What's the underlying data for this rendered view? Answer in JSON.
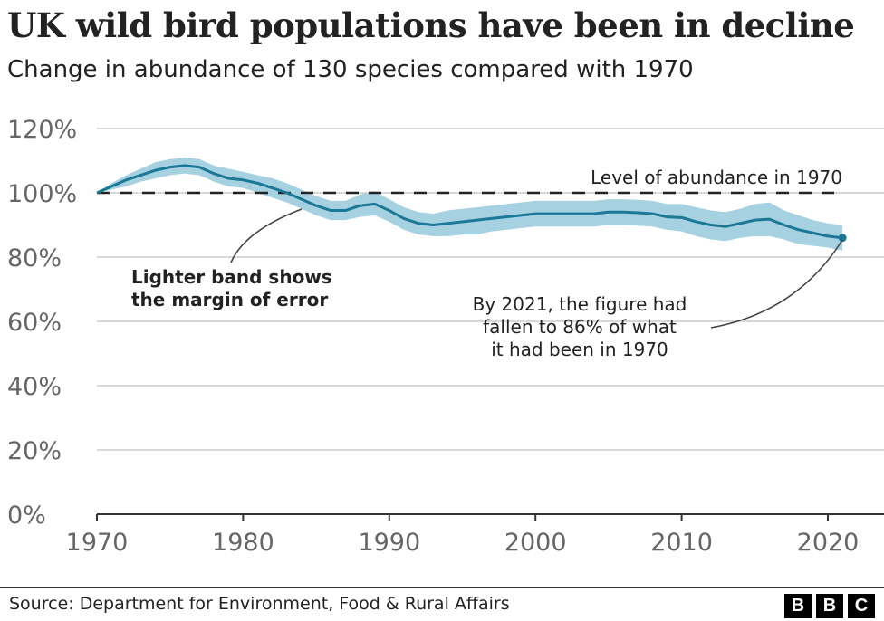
{
  "chart_data": {
    "type": "line",
    "title": "UK wild bird populations have been in decline",
    "subtitle": "Change in abundance of 130 species compared with 1970",
    "x": [
      1970,
      1971,
      1972,
      1973,
      1974,
      1975,
      1976,
      1977,
      1978,
      1979,
      1980,
      1981,
      1982,
      1983,
      1984,
      1985,
      1986,
      1987,
      1988,
      1989,
      1990,
      1991,
      1992,
      1993,
      1994,
      1995,
      1996,
      1997,
      1998,
      1999,
      2000,
      2001,
      2002,
      2003,
      2004,
      2005,
      2006,
      2007,
      2008,
      2009,
      2010,
      2011,
      2012,
      2013,
      2014,
      2015,
      2016,
      2017,
      2018,
      2019,
      2020,
      2021
    ],
    "values": [
      100,
      102,
      104,
      105.5,
      107,
      108,
      108.5,
      108,
      106,
      104.5,
      104,
      103,
      101.5,
      100,
      98,
      96,
      94.5,
      94.5,
      96,
      96.5,
      94.5,
      92,
      90.5,
      90,
      90.5,
      91,
      91.5,
      92,
      92.5,
      93,
      93.5,
      93.5,
      93.5,
      93.5,
      93.5,
      94,
      94,
      93.8,
      93.5,
      92.5,
      92.3,
      91,
      90,
      89.5,
      90.5,
      91.5,
      91.8,
      90,
      88.5,
      87.5,
      86.5,
      86
    ],
    "lower": [
      100,
      101,
      102,
      103.5,
      104.5,
      105.5,
      106,
      105.5,
      103.5,
      102,
      101.5,
      100,
      98.5,
      97,
      95,
      93,
      91.5,
      91.5,
      92.5,
      93,
      91,
      88.5,
      87,
      86.5,
      86.5,
      87,
      87,
      88,
      88.5,
      89,
      89.5,
      89.5,
      89.5,
      89.5,
      89.5,
      90,
      90,
      89.8,
      89.5,
      88.5,
      88,
      86.5,
      85.5,
      85,
      86,
      86.5,
      86.5,
      85.5,
      84,
      83.5,
      83,
      82
    ],
    "upper": [
      100,
      103,
      105.5,
      107.5,
      109.5,
      110.5,
      111,
      110.5,
      108.5,
      107.5,
      106.5,
      105.5,
      104.5,
      103,
      101,
      99,
      97.5,
      97.5,
      99.5,
      100.5,
      98,
      95.5,
      94,
      93.5,
      94.5,
      95,
      95.5,
      96,
      96.5,
      97,
      97.5,
      97.5,
      97.5,
      97.5,
      97.5,
      98,
      98,
      97.8,
      97.5,
      96.5,
      96.5,
      95.5,
      94.5,
      94,
      95,
      96.5,
      97,
      94.5,
      93,
      91.5,
      90.5,
      90
    ],
    "reference_line": {
      "value": 100,
      "label": "Level of abundance in 1970"
    },
    "xlim": [
      1970,
      2022
    ],
    "ylim": [
      0,
      120
    ],
    "yticks": [
      0,
      20,
      40,
      60,
      80,
      100,
      120
    ],
    "ytick_labels": [
      "0%",
      "20%",
      "40%",
      "60%",
      "80%",
      "100%",
      "120%"
    ],
    "xticks": [
      1970,
      1980,
      1990,
      2000,
      2010,
      2020
    ],
    "xtick_labels": [
      "1970",
      "1980",
      "1990",
      "2000",
      "2010",
      "2020"
    ],
    "grid": true,
    "annotations": [
      {
        "lines": [
          "Lighter band shows",
          "the margin of error"
        ],
        "target_year": 1984
      },
      {
        "lines": [
          "By 2021, the figure had",
          "fallen to 86% of what",
          "it had been in 1970"
        ],
        "target_year": 2021
      }
    ],
    "colors": {
      "line": "#1b7896",
      "band": "#a6d1e0",
      "grid": "#cccccc",
      "reference": "#222222"
    }
  },
  "footer": {
    "source": "Source: Department for Environment, Food & Rural Affairs",
    "logo": [
      "B",
      "B",
      "C"
    ]
  }
}
